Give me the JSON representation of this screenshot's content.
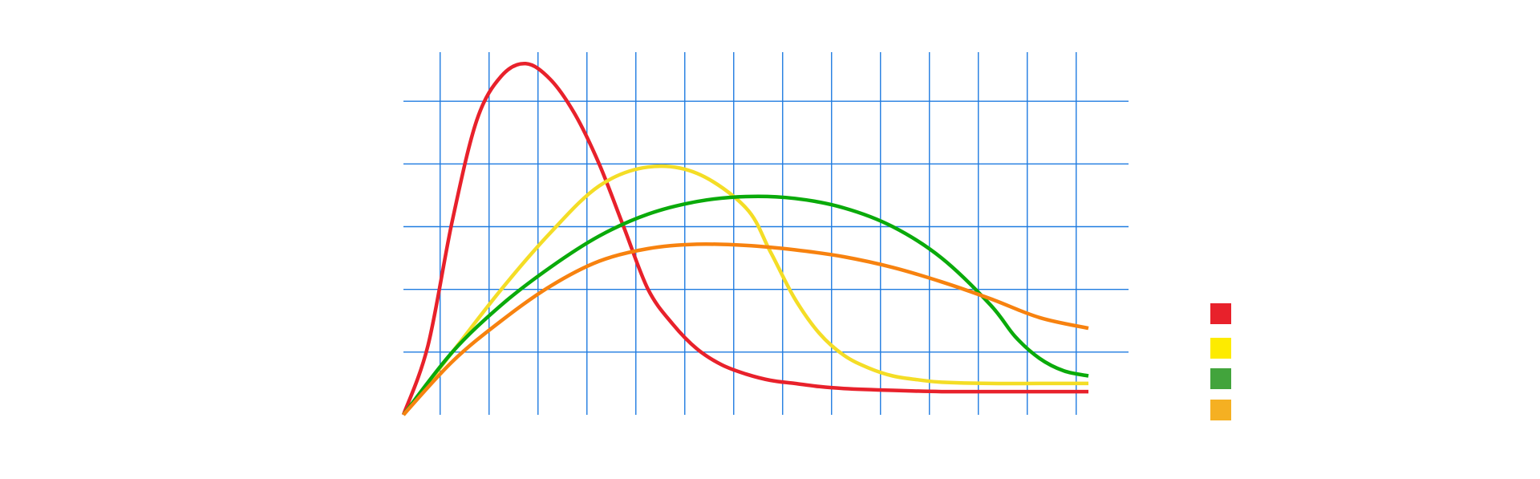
{
  "chart_data": {
    "type": "line",
    "title": "",
    "xlabel": "",
    "ylabel": "",
    "xlim": [
      0,
      14
    ],
    "ylim": [
      0,
      6
    ],
    "grid": true,
    "grid_color": "#1f7be0",
    "x_gridlines": [
      0.75,
      1.75,
      2.75,
      3.75,
      4.75,
      5.75,
      6.75,
      7.75,
      8.75,
      9.75,
      10.75,
      11.75,
      12.75,
      13.75
    ],
    "y_gridlines": [
      1,
      2,
      3,
      4,
      5
    ],
    "legend": "right",
    "series": [
      {
        "color": "#e8212b",
        "x": [
          0,
          0.5,
          1,
          1.5,
          2,
          2.5,
          3,
          3.5,
          4,
          4.5,
          5,
          5.5,
          6,
          6.5,
          7,
          7.5,
          8,
          8.5,
          9,
          10,
          11,
          12,
          13,
          14
        ],
        "y": [
          0,
          1.1,
          3.1,
          4.7,
          5.4,
          5.6,
          5.35,
          4.8,
          4.0,
          3.0,
          2.0,
          1.45,
          1.05,
          0.8,
          0.65,
          0.55,
          0.5,
          0.45,
          0.42,
          0.39,
          0.37,
          0.37,
          0.37,
          0.37
        ]
      },
      {
        "color": "#f4dd26",
        "x": [
          0,
          1,
          2,
          3,
          4,
          5,
          6,
          7,
          7.5,
          8,
          8.5,
          9,
          9.5,
          10,
          10.5,
          11,
          12,
          13,
          14
        ],
        "y": [
          0,
          1.0,
          2.0,
          2.9,
          3.65,
          3.95,
          3.85,
          3.3,
          2.6,
          1.85,
          1.3,
          0.95,
          0.75,
          0.62,
          0.56,
          0.52,
          0.5,
          0.5,
          0.5
        ]
      },
      {
        "color": "#0aaa0a",
        "x": [
          0,
          1,
          2,
          3,
          4,
          5,
          6,
          7,
          8,
          9,
          10,
          11,
          12,
          12.5,
          13,
          13.5,
          14
        ],
        "y": [
          0,
          1.0,
          1.75,
          2.35,
          2.85,
          3.2,
          3.4,
          3.48,
          3.45,
          3.3,
          3.0,
          2.5,
          1.75,
          1.25,
          0.9,
          0.7,
          0.62
        ]
      },
      {
        "color": "#f7820f",
        "x": [
          0,
          1,
          2,
          3,
          4,
          5,
          6,
          7,
          8,
          9,
          10,
          11,
          12,
          13,
          14
        ],
        "y": [
          0,
          0.85,
          1.5,
          2.05,
          2.45,
          2.65,
          2.72,
          2.7,
          2.63,
          2.52,
          2.35,
          2.12,
          1.85,
          1.55,
          1.38
        ]
      }
    ],
    "legend_swatches": [
      "#e8212b",
      "#fdeb00",
      "#42a43c",
      "#f5b022"
    ]
  }
}
